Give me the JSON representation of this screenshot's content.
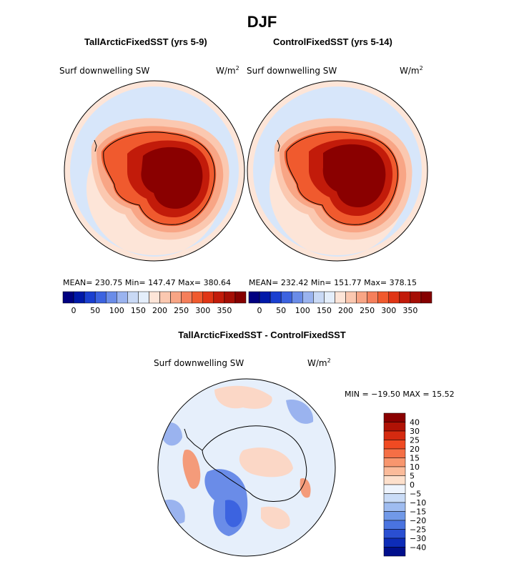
{
  "title": "DJF",
  "colors": {
    "scale": [
      "#000080",
      "#0018a8",
      "#1a3fd0",
      "#3c63e0",
      "#6a8ce8",
      "#9ab3ef",
      "#c9d9f5",
      "#e4eefb",
      "#fde5d8",
      "#fbc8b0",
      "#f8a585",
      "#f57f5b",
      "#f05a2e",
      "#e03515",
      "#c21b0a",
      "#a50e05",
      "#850000"
    ],
    "ocean": "#d7e6fa",
    "antarctica_mid": "#f05a2e",
    "antarctica_core": "#8a0000"
  },
  "panels": [
    {
      "title": "TallArcticFixedSST (yrs 5-9)",
      "variable": "Surf downwelling SW",
      "units": "W/m",
      "units_exp": "2",
      "stats": "MEAN= 230.75   Min= 147.47   Max= 380.64"
    },
    {
      "title": "ControlFixedSST (yrs 5-14)",
      "variable": "Surf downwelling SW",
      "units": "W/m",
      "units_exp": "2",
      "stats": "MEAN= 232.42   Min= 151.77   Max= 378.15"
    }
  ],
  "colorbar_top": {
    "tick_labels": [
      "0",
      "50",
      "100",
      "150",
      "200",
      "250",
      "300",
      "350"
    ]
  },
  "difference": {
    "title": "TallArcticFixedSST - ControlFixedSST",
    "variable": "Surf downwelling SW",
    "units": "W/m",
    "units_exp": "2",
    "stats": "MIN = −19.50  MAX =   15.52",
    "colorbar_labels": [
      "40",
      "30",
      "25",
      "20",
      "15",
      "10",
      "5",
      "0",
      "−5",
      "−10",
      "−15",
      "−20",
      "−25",
      "−30",
      "−40"
    ],
    "colorbar_colors": [
      "#8a0000",
      "#b01205",
      "#d52a10",
      "#f04a22",
      "#f56f45",
      "#f8966e",
      "#fbbb9a",
      "#fde0cc",
      "#eef4fd",
      "#cadcf7",
      "#9fbcf0",
      "#7199e8",
      "#4a74e0",
      "#2a4fd2",
      "#0d2cb8",
      "#000f8c"
    ],
    "red_blob": "#f49b7a",
    "blue_blob": "#6a8ce8",
    "deep_blue_blob": "#3c63e0",
    "bg": "#e6effb"
  }
}
